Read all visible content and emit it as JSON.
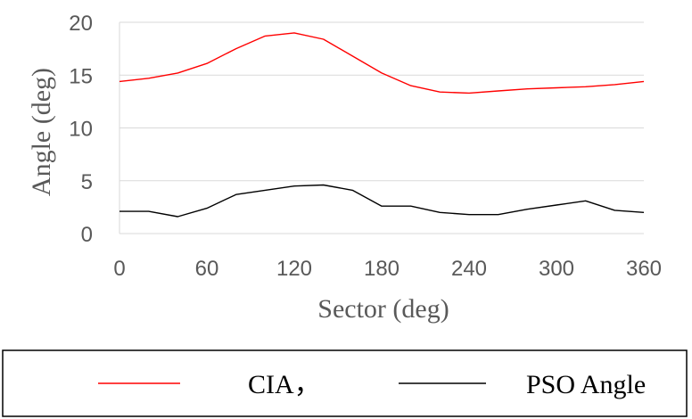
{
  "chart_data": {
    "type": "line",
    "title": "",
    "xlabel": "Sector (deg)",
    "ylabel": "Angle (deg)",
    "xlim": [
      0,
      360
    ],
    "ylim": [
      0,
      20
    ],
    "xticks": [
      0,
      60,
      120,
      180,
      240,
      300,
      360
    ],
    "yticks": [
      0,
      5,
      10,
      15,
      20
    ],
    "grid": "horizontal",
    "legend_position": "bottom",
    "x": [
      0,
      20,
      40,
      60,
      80,
      100,
      120,
      140,
      160,
      180,
      200,
      220,
      240,
      260,
      280,
      300,
      320,
      340,
      360
    ],
    "series": [
      {
        "name": "CIA，",
        "color": "#ff0000",
        "values": [
          14.4,
          14.7,
          15.2,
          16.1,
          17.5,
          18.7,
          19.0,
          18.4,
          16.8,
          15.2,
          14.0,
          13.4,
          13.3,
          13.5,
          13.7,
          13.8,
          13.9,
          14.1,
          14.4
        ]
      },
      {
        "name": "PSO Angle",
        "color": "#000000",
        "values": [
          2.1,
          2.1,
          1.6,
          2.4,
          3.7,
          4.1,
          4.5,
          4.6,
          4.1,
          2.6,
          2.6,
          2.0,
          1.8,
          1.8,
          2.3,
          2.7,
          3.1,
          2.2,
          2.0
        ]
      }
    ]
  }
}
